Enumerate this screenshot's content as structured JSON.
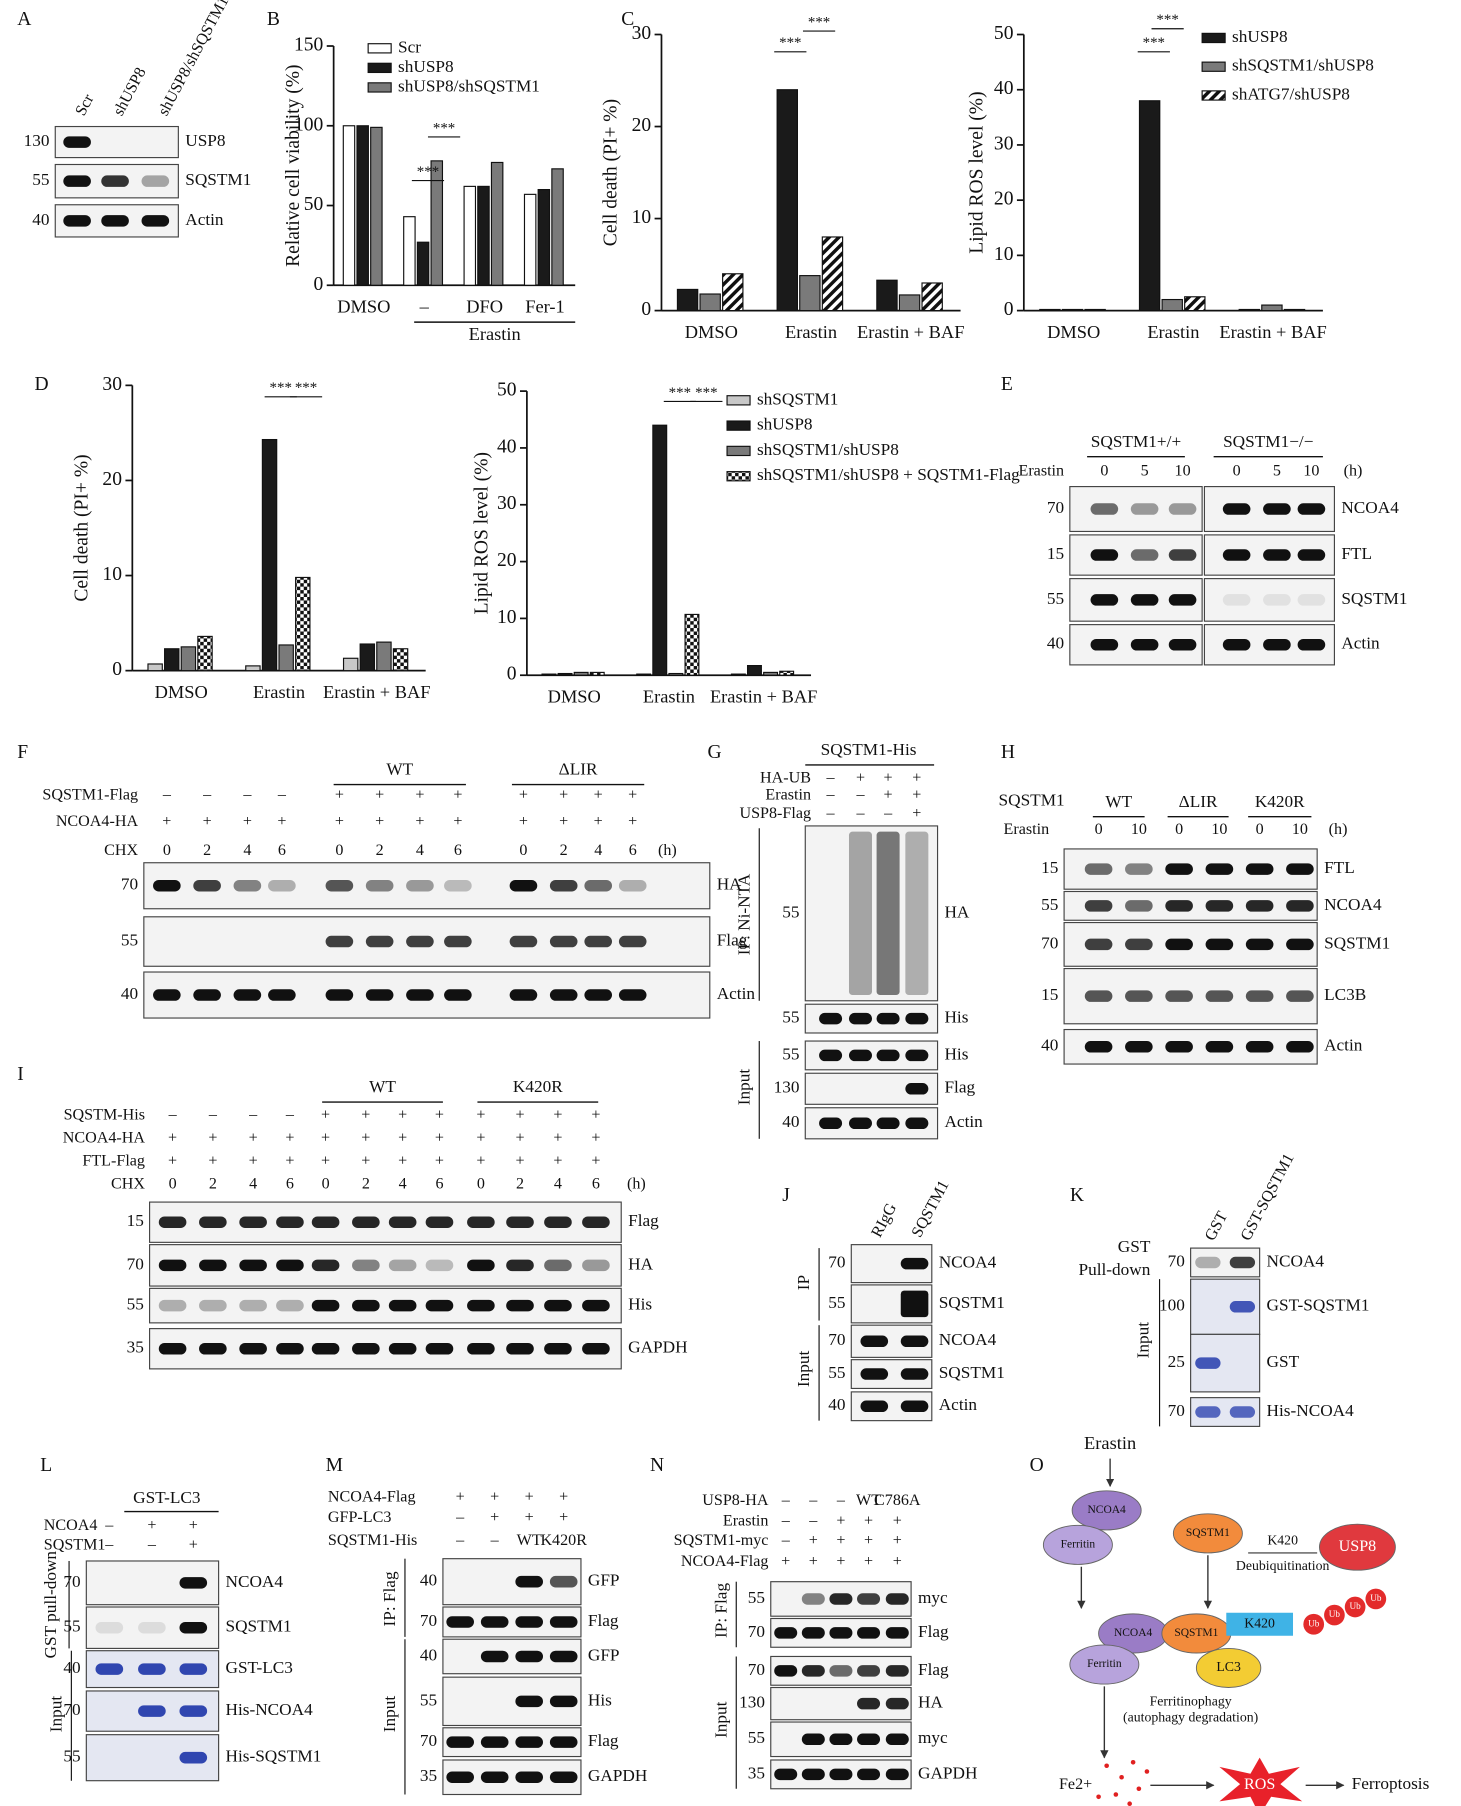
{
  "panel_letters": [
    "A",
    "B",
    "C",
    "D",
    "E",
    "F",
    "G",
    "H",
    "I",
    "J",
    "K",
    "L",
    "M",
    "N",
    "O"
  ],
  "chart_data": [
    {
      "type": "bar",
      "ylabel": "Relative cell viability (%)",
      "categories": [
        "DMSO",
        "–",
        "DFO",
        "Fer-1"
      ],
      "group_label": "Erastin",
      "ylim": [
        0,
        150
      ],
      "yticks": [
        0,
        50,
        100,
        150
      ],
      "series": [
        {
          "name": "Scr",
          "color": "#ffffff",
          "values": [
            100,
            43,
            62,
            57
          ]
        },
        {
          "name": "shUSP8",
          "color": "#1a1a1a",
          "values": [
            100,
            27,
            62,
            60
          ]
        },
        {
          "name": "shUSP8/shSQSTM1",
          "color": "#7a7a7a",
          "values": [
            99,
            78,
            77,
            73
          ]
        }
      ],
      "annotations": [
        "***",
        "***"
      ]
    },
    {
      "type": "bar",
      "ylabel": "Cell death (PI+ %)",
      "categories": [
        "DMSO",
        "Erastin",
        "Erastin + BAF"
      ],
      "ylim": [
        0,
        30
      ],
      "yticks": [
        0,
        10,
        20,
        30
      ],
      "series": [
        {
          "color": "#1a1a1a",
          "values": [
            2.3,
            24,
            3.3
          ]
        },
        {
          "color": "#7a7a7a",
          "values": [
            1.8,
            3.8,
            1.7
          ]
        },
        {
          "color": "#ffffff",
          "pattern": "hatch",
          "values": [
            4,
            8,
            3
          ]
        }
      ],
      "annotations": [
        "***",
        "***"
      ]
    },
    {
      "type": "bar",
      "ylabel": "Lipid ROS level (%)",
      "categories": [
        "DMSO",
        "Erastin",
        "Erastin + BAF"
      ],
      "ylim": [
        0,
        50
      ],
      "yticks": [
        0,
        10,
        20,
        30,
        40,
        50
      ],
      "series": [
        {
          "name": "shUSP8",
          "color": "#1a1a1a",
          "values": [
            0.2,
            38,
            0.2
          ]
        },
        {
          "name": "shSQSTM1/shUSP8",
          "color": "#7a7a7a",
          "values": [
            0.2,
            2,
            1
          ]
        },
        {
          "name": "shATG7/shUSP8",
          "color": "#ffffff",
          "pattern": "hatch",
          "values": [
            0.2,
            2.5,
            0.2
          ]
        }
      ],
      "annotations": [
        "***",
        "***"
      ]
    },
    {
      "type": "bar",
      "ylabel": "Cell death (PI+ %)",
      "categories": [
        "DMSO",
        "Erastin",
        "Erastin + BAF"
      ],
      "ylim": [
        0,
        30
      ],
      "yticks": [
        0,
        10,
        20,
        30
      ],
      "series": [
        {
          "color": "#c8c8c8",
          "values": [
            0.7,
            0.5,
            1.3
          ]
        },
        {
          "color": "#1a1a1a",
          "values": [
            2.3,
            24.3,
            2.8
          ]
        },
        {
          "color": "#7a7a7a",
          "values": [
            2.5,
            2.7,
            3
          ]
        },
        {
          "color": "#ffffff",
          "pattern": "check",
          "values": [
            3.6,
            9.8,
            2.3
          ]
        }
      ],
      "annotations": [
        "***",
        "***"
      ]
    },
    {
      "type": "bar",
      "ylabel": "Lipid ROS level (%)",
      "categories": [
        "DMSO",
        "Erastin",
        "Erastin + BAF"
      ],
      "ylim": [
        0,
        50
      ],
      "yticks": [
        0,
        10,
        20,
        30,
        40,
        50
      ],
      "series": [
        {
          "name": "shSQSTM1",
          "color": "#c8c8c8",
          "values": [
            0.2,
            0.2,
            0.2
          ]
        },
        {
          "name": "shUSP8",
          "color": "#1a1a1a",
          "values": [
            0.3,
            44,
            1.7
          ]
        },
        {
          "name": "shSQSTM1/shUSP8",
          "color": "#7a7a7a",
          "values": [
            0.5,
            0.3,
            0.5
          ]
        },
        {
          "name": "shSQSTM1/shUSP8 + SQSTM1-Flag",
          "color": "#ffffff",
          "pattern": "check",
          "values": [
            0.5,
            10.7,
            0.7
          ]
        }
      ],
      "annotations": [
        "***",
        "***"
      ]
    }
  ],
  "panels": {
    "A": {
      "lanes": [
        "Scr",
        "shUSP8",
        "shUSP8/shSQSTM1"
      ],
      "markers": [
        "130",
        "55",
        "40"
      ],
      "bands": [
        "USP8",
        "SQSTM1",
        "Actin"
      ]
    },
    "E": {
      "groups": [
        "SQSTM1+/+",
        "SQSTM1−/−"
      ],
      "row_labels": [
        "Erastin"
      ],
      "signs": [
        [
          "0",
          "5",
          "10",
          "0",
          "5",
          "10"
        ]
      ],
      "unit": "(h)",
      "markers": [
        "70",
        "15",
        "55",
        "40"
      ],
      "bands": [
        "NCOA4",
        "FTL",
        "SQSTM1",
        "Actin"
      ]
    },
    "F": {
      "groups": [
        "WT",
        "ΔLIR"
      ],
      "row_labels": [
        "SQSTM1-Flag",
        "NCOA4-HA",
        "CHX"
      ],
      "signs": [
        [
          "–",
          "–",
          "–",
          "–",
          "+",
          "+",
          "+",
          "+",
          "+",
          "+",
          "+",
          "+"
        ],
        [
          "+",
          "+",
          "+",
          "+",
          "+",
          "+",
          "+",
          "+",
          "+",
          "+",
          "+",
          "+"
        ],
        [
          "0",
          "2",
          "4",
          "6",
          "0",
          "2",
          "4",
          "6",
          "0",
          "2",
          "4",
          "6"
        ]
      ],
      "unit": "(h)",
      "markers": [
        "70",
        "55",
        "40"
      ],
      "bands": [
        "HA",
        "Flag",
        "Actin"
      ]
    },
    "G": {
      "title": "SQSTM1-His",
      "row_labels": [
        "HA-UB",
        "Erastin",
        "USP8-Flag"
      ],
      "signs": [
        [
          "–",
          "+",
          "+",
          "+"
        ],
        [
          "–",
          "–",
          "+",
          "+"
        ],
        [
          "–",
          "–",
          "–",
          "+"
        ]
      ],
      "side": [
        "IP: Ni-NTA",
        "Input"
      ],
      "markers": [
        "55",
        "55",
        "55",
        "130",
        "40"
      ],
      "bands": [
        "HA",
        "His",
        "His",
        "Flag",
        "Actin"
      ]
    },
    "H": {
      "title": "SQSTM1",
      "groups": [
        "WT",
        "ΔLIR",
        "K420R"
      ],
      "row_labels": [
        "Erastin"
      ],
      "signs": [
        [
          "0",
          "10",
          "0",
          "10",
          "0",
          "10"
        ]
      ],
      "unit": "(h)",
      "markers": [
        "15",
        "55",
        "70",
        "15",
        "40"
      ],
      "bands": [
        "FTL",
        "NCOA4",
        "SQSTM1",
        "LC3B",
        "Actin"
      ]
    },
    "I": {
      "groups": [
        "WT",
        "K420R"
      ],
      "row_labels": [
        "SQSTM-His",
        "NCOA4-HA",
        "FTL-Flag",
        "CHX"
      ],
      "signs": [
        [
          "–",
          "–",
          "–",
          "–",
          "+",
          "+",
          "+",
          "+",
          "+",
          "+",
          "+",
          "+"
        ],
        [
          "+",
          "+",
          "+",
          "+",
          "+",
          "+",
          "+",
          "+",
          "+",
          "+",
          "+",
          "+"
        ],
        [
          "+",
          "+",
          "+",
          "+",
          "+",
          "+",
          "+",
          "+",
          "+",
          "+",
          "+",
          "+"
        ],
        [
          "0",
          "2",
          "4",
          "6",
          "0",
          "2",
          "4",
          "6",
          "0",
          "2",
          "4",
          "6"
        ]
      ],
      "unit": "(h)",
      "markers": [
        "15",
        "70",
        "55",
        "35"
      ],
      "bands": [
        "Flag",
        "HA",
        "His",
        "GAPDH"
      ]
    },
    "J": {
      "lanes": [
        "RIgG",
        "SQSTM1"
      ],
      "side": [
        "IP",
        "Input"
      ],
      "markers": [
        "70",
        "55",
        "70",
        "55",
        "40"
      ],
      "bands": [
        "NCOA4",
        "SQSTM1",
        "NCOA4",
        "SQSTM1",
        "Actin"
      ]
    },
    "K": {
      "lanes": [
        "GST",
        "GST-SQSTM1"
      ],
      "side": [
        "GST",
        "Pull-down",
        "Input"
      ],
      "markers": [
        "70",
        "100",
        "25",
        "70"
      ],
      "bands": [
        "NCOA4",
        "GST-SQSTM1",
        "GST",
        "His-NCOA4"
      ]
    },
    "L": {
      "title": "GST-LC3",
      "row_labels": [
        "NCOA4",
        "SQSTM1"
      ],
      "signs": [
        [
          "–",
          "+",
          "+"
        ],
        [
          "–",
          "–",
          "+"
        ]
      ],
      "side": [
        "GST pull-down",
        "Input"
      ],
      "markers": [
        "70",
        "55",
        "40",
        "70",
        "55"
      ],
      "bands": [
        "NCOA4",
        "SQSTM1",
        "GST-LC3",
        "His-NCOA4",
        "His-SQSTM1"
      ]
    },
    "M": {
      "row_labels": [
        "NCOA4-Flag",
        "GFP-LC3",
        "SQSTM1-His"
      ],
      "signs": [
        [
          "+",
          "+",
          "+",
          "+"
        ],
        [
          "–",
          "+",
          "+",
          "+"
        ],
        [
          "–",
          "–",
          "WT",
          "K420R"
        ]
      ],
      "side": [
        "IP: Flag",
        "Input"
      ],
      "markers": [
        "40",
        "70",
        "40",
        "55",
        "70",
        "35"
      ],
      "bands": [
        "GFP",
        "Flag",
        "GFP",
        "His",
        "Flag",
        "GAPDH"
      ]
    },
    "N": {
      "row_labels": [
        "USP8-HA",
        "Erastin",
        "SQSTM1-myc",
        "NCOA4-Flag"
      ],
      "signs": [
        [
          "–",
          "–",
          "–",
          "WT",
          "C786A"
        ],
        [
          "–",
          "–",
          "+",
          "+",
          "+"
        ],
        [
          "–",
          "+",
          "+",
          "+",
          "+"
        ],
        [
          "+",
          "+",
          "+",
          "+",
          "+"
        ]
      ],
      "side": [
        "IP: Flag",
        "Input"
      ],
      "markers": [
        "55",
        "70",
        "70",
        "130",
        "55",
        "35"
      ],
      "bands": [
        "myc",
        "Flag",
        "Flag",
        "HA",
        "myc",
        "GAPDH"
      ]
    },
    "O": {
      "texts": [
        "Erastin",
        "NCOA4",
        "Ferritin",
        "SQSTM1",
        "USP8",
        "K420",
        "Deubiquitination",
        "NCOA4",
        "SQSTM1",
        "K420",
        "Ub",
        "Ub",
        "Ub",
        "Ub",
        "Ferritin",
        "LC3",
        "Ferritinophagy",
        "(autophagy degradation)",
        "Fe2+",
        "ROS",
        "Ferroptosis"
      ]
    }
  }
}
